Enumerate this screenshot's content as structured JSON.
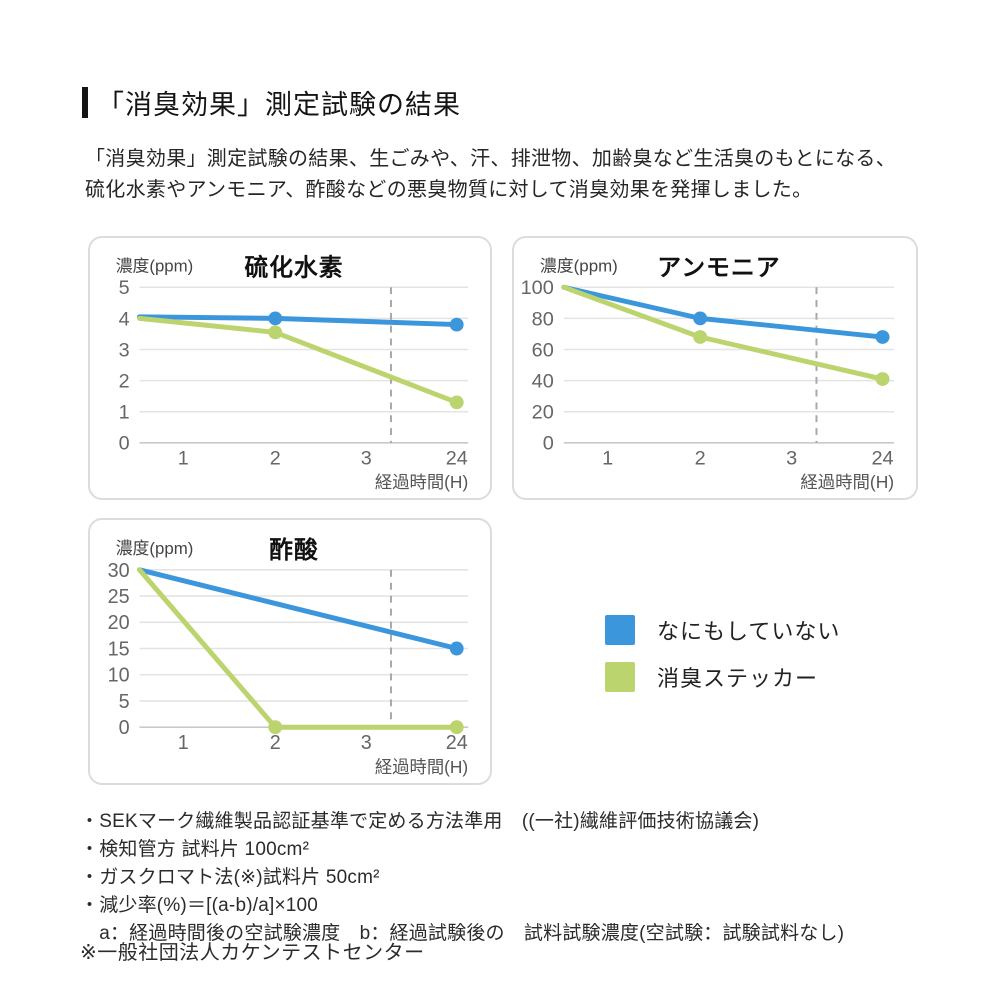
{
  "header": {
    "title": "「消臭効果」測定試験の結果"
  },
  "intro": {
    "line1": "「消臭効果」測定試験の結果、生ごみや、汗、排泄物、加齢臭など生活臭のもとになる、",
    "line2": "硫化水素やアンモニア、酢酸などの悪臭物質に対して消臭効果を発揮しました。"
  },
  "legend": {
    "items": [
      {
        "label": "なにもしていない",
        "color": "#3C96DB"
      },
      {
        "label": "消臭ステッカー",
        "color": "#BCD46E"
      }
    ]
  },
  "chart_data": [
    {
      "type": "line",
      "title": "硫化水素",
      "y_axis_label": "濃度(ppm)",
      "x_axis_label": "経過時間(H)",
      "x_ticks": [
        "1",
        "2",
        "3",
        "24"
      ],
      "y_ticks": [
        0,
        1,
        2,
        3,
        4,
        5
      ],
      "ylim": [
        0,
        5
      ],
      "x_scale": {
        "start": 0,
        "1": 0.133,
        "2": 0.413,
        "3": 0.69,
        "24": 0.965
      },
      "dashed_vline_frac": 0.765,
      "grid": true,
      "series": [
        {
          "name": "なにもしていない",
          "color": "#3C96DB",
          "points": [
            {
              "x": "start",
              "y": 4.05
            },
            {
              "x": "2",
              "y": 4.0,
              "dot": true
            },
            {
              "x": "24",
              "y": 3.8,
              "dot": true
            }
          ]
        },
        {
          "name": "消臭ステッカー",
          "color": "#BCD46E",
          "points": [
            {
              "x": "start",
              "y": 4.0
            },
            {
              "x": "2",
              "y": 3.55,
              "dot": true
            },
            {
              "x": "24",
              "y": 1.3,
              "dot": true
            }
          ]
        }
      ]
    },
    {
      "type": "line",
      "title": "アンモニア",
      "y_axis_label": "濃度(ppm)",
      "x_axis_label": "経過時間(H)",
      "x_ticks": [
        "1",
        "2",
        "3",
        "24"
      ],
      "y_ticks": [
        0,
        20,
        40,
        60,
        80,
        100
      ],
      "ylim": [
        0,
        100
      ],
      "x_scale": {
        "start": 0,
        "1": 0.133,
        "2": 0.413,
        "3": 0.69,
        "24": 0.965
      },
      "dashed_vline_frac": 0.765,
      "grid": true,
      "series": [
        {
          "name": "なにもしていない",
          "color": "#3C96DB",
          "points": [
            {
              "x": "start",
              "y": 100
            },
            {
              "x": "2",
              "y": 80,
              "dot": true
            },
            {
              "x": "24",
              "y": 68,
              "dot": true
            }
          ]
        },
        {
          "name": "消臭ステッカー",
          "color": "#BCD46E",
          "points": [
            {
              "x": "start",
              "y": 100
            },
            {
              "x": "2",
              "y": 68,
              "dot": true
            },
            {
              "x": "24",
              "y": 41,
              "dot": true
            }
          ]
        }
      ]
    },
    {
      "type": "line",
      "title": "酢酸",
      "y_axis_label": "濃度(ppm)",
      "x_axis_label": "経過時間(H)",
      "x_ticks": [
        "1",
        "2",
        "3",
        "24"
      ],
      "y_ticks": [
        0,
        5,
        10,
        15,
        20,
        25,
        30
      ],
      "ylim": [
        0,
        30
      ],
      "x_scale": {
        "start": 0,
        "1": 0.133,
        "2": 0.413,
        "3": 0.69,
        "24": 0.965
      },
      "dashed_vline_frac": 0.765,
      "grid": true,
      "series": [
        {
          "name": "なにもしていない",
          "color": "#3C96DB",
          "points": [
            {
              "x": "start",
              "y": 30
            },
            {
              "x": "24",
              "y": 15,
              "dot": true
            }
          ]
        },
        {
          "name": "消臭ステッカー",
          "color": "#BCD46E",
          "points": [
            {
              "x": "start",
              "y": 30
            },
            {
              "x": "2",
              "y": 0,
              "dot": true
            },
            {
              "x": "24",
              "y": 0,
              "dot": true
            }
          ]
        }
      ]
    }
  ],
  "footnotes": {
    "lines": [
      "・SEKマーク繊維製品認証基準で定める方法準用　((一社)繊維評価技術協議会)",
      "・検知管方 試料片 100cm²",
      "・ガスクロマト法(※)試料片 50cm²",
      "・減少率(%)＝[(a-b)/a]×100",
      "　a：経過時間後の空試験濃度　b：経過試験後の　試料試験濃度(空試験：試験試料なし)"
    ],
    "note": "※一般社団法人カケンテストセンター"
  },
  "colors": {
    "accent_blue": "#3C96DB",
    "accent_green": "#BCD46E",
    "grid_line": "#e4e4e4",
    "baseline": "#c9c9c9",
    "dashed_line": "#a8a8a8",
    "card_border": "#dcdcdc"
  }
}
